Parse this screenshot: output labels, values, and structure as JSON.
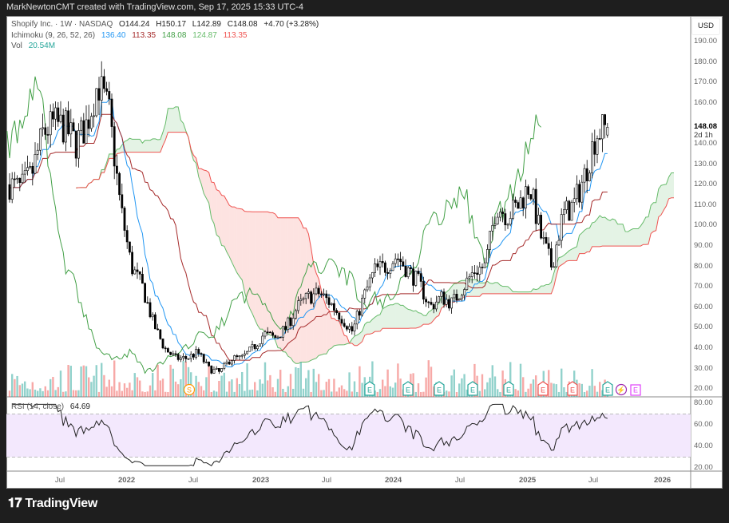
{
  "header": "MarkNewtonCMT created with TradingView.com, Sep 17, 2025 15:33 UTC-4",
  "legend": {
    "symbol": "Shopify Inc. · 1W · NASDAQ",
    "open": "O144.24",
    "high": "H150.17",
    "low": "L142.89",
    "close": "C148.08",
    "change": "+4.70 (+3.28%)",
    "ichimoku_label": "Ichimoku (9, 26, 52, 26)",
    "ichimoku_values": [
      "136.40",
      "113.35",
      "148.08",
      "124.87",
      "113.35"
    ],
    "vol_label": "Vol",
    "vol_value": "20.54M",
    "rsi_label": "RSI (14, close)",
    "rsi_value": "64.69"
  },
  "price_axis": {
    "currency": "USD",
    "ticks": [
      "190.00",
      "180.00",
      "170.00",
      "160.00",
      "140.00",
      "130.00",
      "120.00",
      "110.00",
      "100.00",
      "90.00",
      "80.00",
      "70.00",
      "60.00",
      "50.00",
      "40.00",
      "30.00",
      "20.00"
    ],
    "last_price": "148.08",
    "countdown": "2d 1h"
  },
  "rsi_axis": {
    "ticks": [
      "80.00",
      "60.00",
      "40.00",
      "20.00"
    ]
  },
  "time_axis": [
    "Jul",
    "2022",
    "Jul",
    "2023",
    "Jul",
    "2024",
    "Jul",
    "2025",
    "Jul",
    "2026"
  ],
  "events": [
    {
      "t": "S"
    },
    {
      "t": "E"
    },
    {
      "t": "E"
    },
    {
      "t": "E"
    },
    {
      "t": "E"
    },
    {
      "t": "E"
    },
    {
      "t": "E",
      "neg": true
    },
    {
      "t": "E",
      "neg": true
    },
    {
      "t": "E"
    },
    {
      "t": "⚡"
    },
    {
      "t": "E",
      "future": true
    }
  ],
  "brand": "TradingView",
  "colors": {
    "tenkan": "#2196f3",
    "kijun": "#a52a2a",
    "lagging": "#43a047",
    "spanA": "#66bb6a",
    "spanB": "#ef5350",
    "up": "#26a69a",
    "down": "#ef5350"
  },
  "chart_data": {
    "type": "candlestick",
    "interval": "1W",
    "start": "2021-03",
    "monthly_close": [
      120,
      118,
      125,
      145,
      150,
      148,
      140,
      150,
      170,
      155,
      110,
      80,
      70,
      52,
      40,
      35,
      35,
      38,
      30,
      28,
      35,
      35,
      40,
      47,
      45,
      50,
      60,
      65,
      67,
      62,
      55,
      48,
      65,
      78,
      80,
      85,
      78,
      72,
      60,
      65,
      62,
      70,
      78,
      80,
      110,
      105,
      110,
      120,
      95,
      80,
      105,
      110,
      125,
      145,
      148
    ],
    "ylim": [
      20,
      190
    ],
    "rsi_ylim": [
      20,
      80
    ],
    "rsi_bands": [
      30,
      70
    ]
  }
}
